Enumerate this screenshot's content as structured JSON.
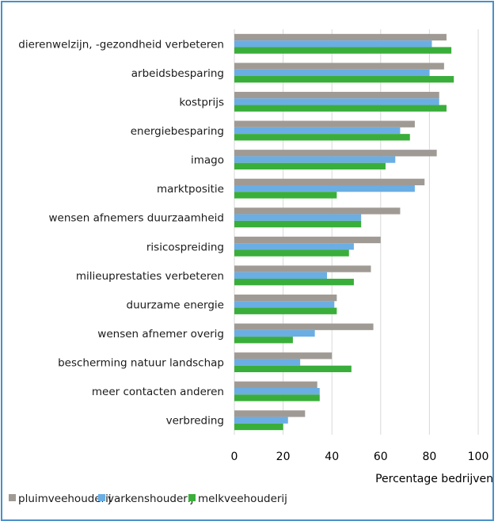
{
  "chart_data": {
    "type": "bar",
    "orientation": "horizontal",
    "categories": [
      "dierenwelzijn, -gezondheid verbeteren",
      "arbeidsbesparing",
      "kostprijs",
      "energiebesparing",
      "imago",
      "marktpositie",
      "wensen afnemers duurzaamheid",
      "risicospreiding",
      "milieuprestaties verbeteren",
      "duurzame energie",
      "wensen afnemer overig",
      "bescherming natuur landschap",
      "meer contacten anderen",
      "verbreding"
    ],
    "series": [
      {
        "name": "pluimveehouderij",
        "color": "#a09a95",
        "values": [
          87,
          86,
          84,
          74,
          83,
          78,
          68,
          60,
          56,
          42,
          57,
          40,
          34,
          29
        ]
      },
      {
        "name": "varkenshouderij",
        "color": "#6aaee4",
        "values": [
          81,
          80,
          84,
          68,
          66,
          74,
          52,
          49,
          38,
          41,
          33,
          27,
          35,
          22
        ]
      },
      {
        "name": "melkveehouderij",
        "color": "#3aae3a",
        "values": [
          89,
          90,
          87,
          72,
          62,
          42,
          52,
          47,
          49,
          42,
          24,
          48,
          35,
          20
        ]
      }
    ],
    "xlabel": "Percentage bedrijven",
    "xlim": [
      0,
      100
    ],
    "xticks": [
      "0",
      "20",
      "40",
      "60",
      "80",
      "100"
    ],
    "grid": true,
    "legend": "bottom"
  }
}
